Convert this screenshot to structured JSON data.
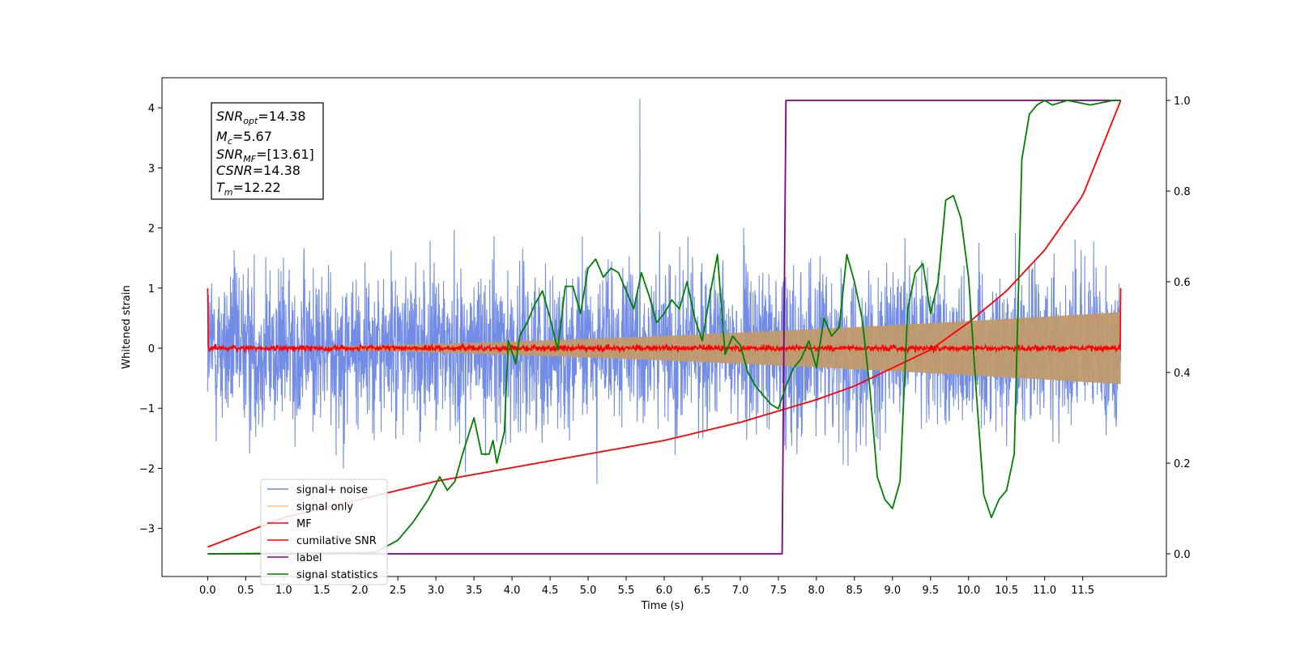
{
  "chart_data": {
    "type": "line",
    "xlabel": "Time (s)",
    "ylabel": "Whitened strain",
    "xlim": [
      -0.6,
      12.6
    ],
    "ylim": [
      -3.8,
      4.5
    ],
    "y2lim": [
      -0.05,
      1.05
    ],
    "x_ticks": [
      "0.0",
      "0.5",
      "1.0",
      "1.5",
      "2.0",
      "2.5",
      "3.0",
      "3.5",
      "4.0",
      "4.5",
      "5.0",
      "5.5",
      "6.0",
      "6.5",
      "7.0",
      "7.5",
      "8.0",
      "8.5",
      "9.0",
      "9.5",
      "10.0",
      "10.5",
      "11.0",
      "11.5"
    ],
    "y_ticks": [
      "4",
      "3",
      "2",
      "1",
      "0",
      "−1",
      "−2",
      "−3"
    ],
    "y2_ticks": [
      "1.0",
      "0.8",
      "0.6",
      "0.4",
      "0.2",
      "0.0"
    ],
    "annotation": {
      "snr_opt": "=14.38",
      "mc": "=5.67",
      "snr_mf": "=[13.61]",
      "csnr": "=14.38",
      "tm": "=12.22"
    },
    "legend_position": "lower-left",
    "legend": [
      {
        "label": "signal+ noise",
        "color": "#6b87e6"
      },
      {
        "label": "signal only",
        "color": "#ffc266"
      },
      {
        "label": "MF",
        "color": "#ff0000"
      },
      {
        "label": "cumilative SNR",
        "color": "#ff0000"
      },
      {
        "label": "label",
        "color": "#800080"
      },
      {
        "label": "signal statistics",
        "color": "#008000"
      }
    ],
    "series": [
      {
        "name": "signal+ noise",
        "axis": "left",
        "kind": "noise",
        "t_range": [
          0,
          12.0
        ],
        "amplitude_typical": 1.0,
        "peak": 4.15,
        "color": "#6b87e6"
      },
      {
        "name": "signal only",
        "axis": "left",
        "kind": "envelope",
        "t_range": [
          0,
          12.0
        ],
        "amplitude_end": 0.6,
        "color": "#c09a6b"
      },
      {
        "name": "MF",
        "axis": "left",
        "kind": "noise",
        "t_range": [
          0,
          12.0
        ],
        "amplitude_typical": 0.06,
        "start_value": 1.0,
        "end_value": 1.0,
        "color": "#ff0000"
      },
      {
        "name": "cumilative SNR",
        "axis": "right",
        "x": [
          0,
          1,
          2,
          3,
          4,
          5,
          6,
          7,
          7.5,
          8,
          8.5,
          9,
          9.5,
          10,
          10.5,
          11,
          11.5,
          12.0
        ],
        "y": [
          0.015,
          0.08,
          0.12,
          0.16,
          0.19,
          0.22,
          0.25,
          0.29,
          0.315,
          0.34,
          0.37,
          0.41,
          0.45,
          0.51,
          0.58,
          0.67,
          0.79,
          1.0
        ],
        "color": "#ff0000"
      },
      {
        "name": "label",
        "axis": "right",
        "x": [
          0,
          7.55,
          7.6,
          12.0
        ],
        "y": [
          0.0,
          0.0,
          1.0,
          1.0
        ],
        "color": "#800080"
      },
      {
        "name": "signal statistics",
        "axis": "right",
        "x": [
          0,
          2.2,
          2.5,
          2.7,
          2.9,
          3.05,
          3.15,
          3.25,
          3.35,
          3.5,
          3.6,
          3.7,
          3.75,
          3.8,
          3.9,
          3.95,
          4.05,
          4.1,
          4.2,
          4.3,
          4.4,
          4.5,
          4.6,
          4.7,
          4.8,
          4.9,
          5.0,
          5.1,
          5.2,
          5.3,
          5.4,
          5.5,
          5.6,
          5.7,
          5.8,
          5.9,
          6.0,
          6.1,
          6.2,
          6.3,
          6.4,
          6.5,
          6.6,
          6.7,
          6.8,
          6.9,
          7.0,
          7.1,
          7.2,
          7.3,
          7.4,
          7.5,
          7.6,
          7.7,
          7.8,
          7.9,
          8.0,
          8.1,
          8.2,
          8.3,
          8.4,
          8.5,
          8.6,
          8.7,
          8.8,
          8.9,
          9.0,
          9.1,
          9.2,
          9.3,
          9.4,
          9.5,
          9.6,
          9.7,
          9.8,
          9.9,
          10.0,
          10.1,
          10.2,
          10.3,
          10.4,
          10.5,
          10.6,
          10.7,
          10.8,
          10.9,
          11.0,
          11.1,
          11.3,
          11.6,
          11.9,
          12.0
        ],
        "y": [
          0.0,
          0.003,
          0.03,
          0.07,
          0.12,
          0.17,
          0.14,
          0.16,
          0.22,
          0.3,
          0.22,
          0.22,
          0.25,
          0.2,
          0.27,
          0.47,
          0.42,
          0.48,
          0.51,
          0.55,
          0.58,
          0.52,
          0.45,
          0.59,
          0.59,
          0.53,
          0.63,
          0.65,
          0.61,
          0.63,
          0.62,
          0.58,
          0.54,
          0.62,
          0.57,
          0.51,
          0.53,
          0.56,
          0.54,
          0.6,
          0.52,
          0.47,
          0.57,
          0.66,
          0.44,
          0.48,
          0.46,
          0.4,
          0.37,
          0.35,
          0.33,
          0.32,
          0.37,
          0.41,
          0.43,
          0.47,
          0.41,
          0.52,
          0.48,
          0.5,
          0.66,
          0.6,
          0.52,
          0.37,
          0.17,
          0.12,
          0.1,
          0.16,
          0.54,
          0.62,
          0.64,
          0.53,
          0.6,
          0.78,
          0.79,
          0.74,
          0.61,
          0.36,
          0.13,
          0.08,
          0.12,
          0.14,
          0.22,
          0.87,
          0.97,
          0.99,
          1.0,
          0.99,
          1.0,
          0.99,
          1.0,
          1.0
        ],
        "color": "#008000"
      }
    ]
  }
}
